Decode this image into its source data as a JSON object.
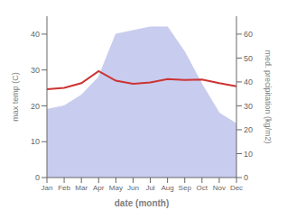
{
  "chart_data": {
    "type": "line",
    "xlabel": "date (month)",
    "ylabel": "max temp (C)",
    "y2label": "med. precipitation (kg/m2)",
    "categories": [
      "Jan",
      "Feb",
      "Mar",
      "Apr",
      "May",
      "Jun",
      "Jul",
      "Aug",
      "Sep",
      "Oct",
      "Nov",
      "Dec"
    ],
    "series": [
      {
        "type": "area",
        "color": "#c8ccee",
        "values": [
          19,
          20,
          23,
          28,
          40,
          41,
          42,
          42,
          35,
          26,
          18,
          15
        ]
      },
      {
        "type": "line",
        "color": "#cc3333",
        "axis": "y2",
        "values": [
          37,
          37.5,
          39.5,
          44.5,
          40.5,
          39.2,
          39.8,
          41.2,
          40.8,
          41.0,
          39.5,
          38.2
        ]
      }
    ],
    "ylim": [
      0,
      45
    ],
    "yticks": [
      0,
      10,
      20,
      30,
      40
    ],
    "y2lim": [
      0,
      67.5
    ],
    "y2ticks": [
      0,
      10,
      20,
      30,
      40,
      50,
      60
    ],
    "grid": false
  }
}
